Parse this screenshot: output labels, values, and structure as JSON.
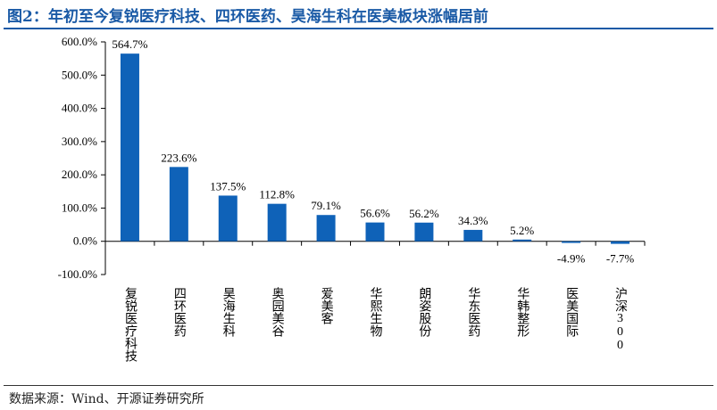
{
  "title": "图2：年初至今复锐医疗科技、四环医药、昊海生科在医美板块涨幅居前",
  "source": "数据来源：Wind、开源证券研究所",
  "colors": {
    "bar": "#0f62b8",
    "title": "#1a5aa6"
  },
  "chart_data": {
    "type": "bar",
    "categories": [
      "复锐医疗科技",
      "四环医药",
      "昊海生科",
      "奥园美谷",
      "爱美客",
      "华熙生物",
      "朗姿股份",
      "华东医药",
      "华韩整形",
      "医美国际",
      "沪深300"
    ],
    "values": [
      564.7,
      223.6,
      137.5,
      112.8,
      79.1,
      56.6,
      56.2,
      34.3,
      5.2,
      -4.9,
      -7.7
    ],
    "value_labels": [
      "564.7%",
      "223.6%",
      "137.5%",
      "112.8%",
      "79.1%",
      "56.6%",
      "56.2%",
      "34.3%",
      "5.2%",
      "-4.9%",
      "-7.7%"
    ],
    "yticks": [
      "600.0%",
      "500.0%",
      "400.0%",
      "300.0%",
      "200.0%",
      "100.0%",
      "0.0%",
      "-100.0%"
    ],
    "ytick_values": [
      600,
      500,
      400,
      300,
      200,
      100,
      0,
      -100
    ],
    "ylim": [
      -100,
      600
    ],
    "grid": false,
    "legend": "none"
  }
}
